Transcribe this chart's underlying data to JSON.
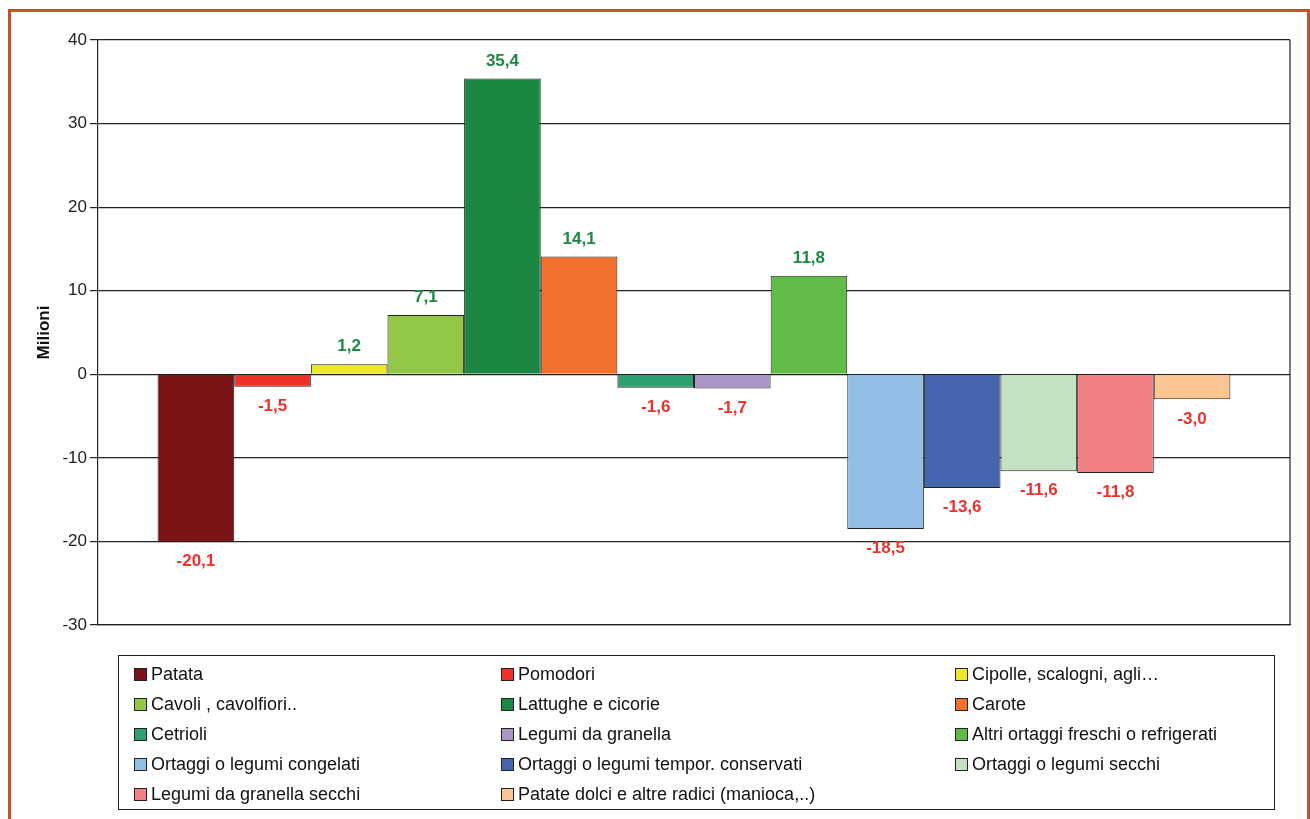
{
  "chart_data": {
    "type": "bar",
    "ylabel": "Milioni",
    "categories": [
      null
    ],
    "series": [
      {
        "name": "Patata",
        "color": "#7a1416",
        "values": [
          -20.1
        ],
        "value_labels": [
          "-20,1"
        ]
      },
      {
        "name": "Pomodori",
        "color": "#ee3129",
        "values": [
          -1.5
        ],
        "value_labels": [
          "-1,5"
        ]
      },
      {
        "name": "Cipolle, scalogni, agli…",
        "color": "#ede82a",
        "values": [
          1.2
        ],
        "value_labels": [
          "1,2"
        ]
      },
      {
        "name": "Cavoli , cavolfiori..",
        "color": "#92c845",
        "values": [
          7.1
        ],
        "value_labels": [
          "7,1"
        ]
      },
      {
        "name": "Lattughe e cicorie",
        "color": "#1c8743",
        "values": [
          35.4
        ],
        "value_labels": [
          "35,4"
        ]
      },
      {
        "name": "Carote",
        "color": "#f26f2c",
        "values": [
          14.1
        ],
        "value_labels": [
          "14,1"
        ]
      },
      {
        "name": "Cetrioli",
        "color": "#2fa06f",
        "values": [
          -1.6
        ],
        "value_labels": [
          "-1,6"
        ]
      },
      {
        "name": "Legumi da granella",
        "color": "#a996c6",
        "values": [
          -1.7
        ],
        "value_labels": [
          "-1,7"
        ]
      },
      {
        "name": "Altri ortaggi freschi o refrigerati",
        "color": "#62bb46",
        "values": [
          11.8
        ],
        "value_labels": [
          "11,8"
        ]
      },
      {
        "name": "Ortaggi o legumi congelati",
        "color": "#92bfe6",
        "values": [
          -18.5
        ],
        "value_labels": [
          "-18,5"
        ]
      },
      {
        "name": "Ortaggi o legumi tempor. conservati",
        "color": "#4665af",
        "values": [
          -13.6
        ],
        "value_labels": [
          "-13,6"
        ]
      },
      {
        "name": "Ortaggi o legumi secchi",
        "color": "#c4e2c1",
        "values": [
          -11.6
        ],
        "value_labels": [
          "-11,6"
        ]
      },
      {
        "name": "Legumi da granella secchi",
        "color": "#f28083",
        "values": [
          -11.8
        ],
        "value_labels": [
          "-11,8"
        ]
      },
      {
        "name": "Patate dolci e altre radici (manioca,..)",
        "color": "#fbc693",
        "values": [
          -3.0
        ],
        "value_labels": [
          "-3,0"
        ]
      }
    ],
    "ylim": [
      -30,
      40
    ],
    "yticks": [
      -30,
      -20,
      -10,
      0,
      10,
      20,
      30,
      40
    ],
    "grid": "y",
    "legend": "bottom"
  }
}
